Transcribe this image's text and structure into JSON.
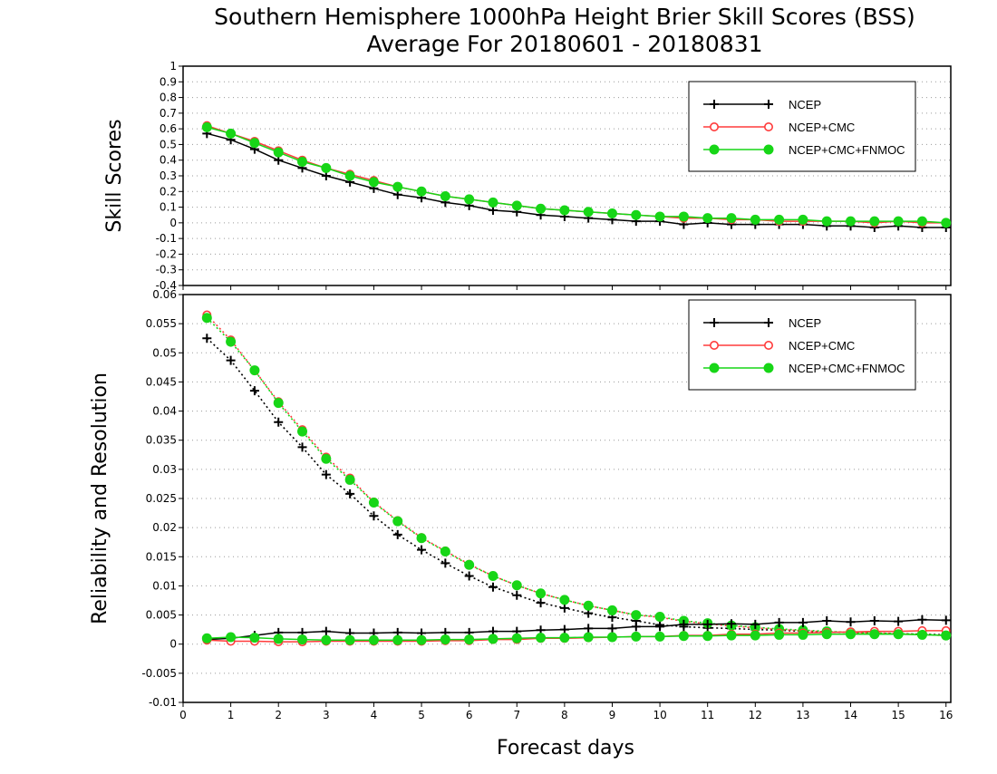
{
  "title_line1": "Southern Hemisphere 1000hPa Height Brier Skill Scores (BSS)",
  "title_line2": "Average For 20180601 - 20180831",
  "xlabel": "Forecast days",
  "colors": {
    "NCEP": "#000000",
    "NCEP+CMC": "#ff3b3b",
    "NCEP+CMC+FNMOC": "#17d617"
  },
  "chart_data": [
    {
      "type": "line",
      "panel": "top",
      "ylabel": "Skill Scores",
      "xlim": [
        0,
        16.1
      ],
      "ylim": [
        -0.4,
        1
      ],
      "x_ticks": [
        "0",
        "1",
        "2",
        "3",
        "4",
        "5",
        "6",
        "7",
        "8",
        "9",
        "10",
        "11",
        "12",
        "13",
        "14",
        "15",
        "16"
      ],
      "y_ticks": [
        "-0.4",
        "-0.3",
        "-0.2",
        "-0.1",
        "0",
        "0.1",
        "0.2",
        "0.3",
        "0.4",
        "0.5",
        "0.6",
        "0.7",
        "0.8",
        "0.9",
        "1"
      ],
      "grid": true,
      "legend": {
        "placement": "top-right",
        "entries": [
          "NCEP",
          "NCEP+CMC",
          "NCEP+CMC+FNMOC"
        ]
      },
      "x": [
        0.5,
        1,
        1.5,
        2,
        2.5,
        3,
        3.5,
        4,
        4.5,
        5,
        5.5,
        6,
        6.5,
        7,
        7.5,
        8,
        8.5,
        9,
        9.5,
        10,
        10.5,
        11,
        11.5,
        12,
        12.5,
        13,
        13.5,
        14,
        14.5,
        15,
        15.5,
        16
      ],
      "series": [
        {
          "name": "NCEP",
          "marker": "plus",
          "values": [
            0.57,
            0.53,
            0.47,
            0.4,
            0.35,
            0.3,
            0.26,
            0.22,
            0.18,
            0.16,
            0.13,
            0.11,
            0.08,
            0.07,
            0.05,
            0.04,
            0.03,
            0.02,
            0.01,
            0.01,
            -0.01,
            0.0,
            -0.01,
            -0.01,
            -0.01,
            -0.01,
            -0.02,
            -0.02,
            -0.03,
            -0.02,
            -0.03,
            -0.03
          ]
        },
        {
          "name": "NCEP+CMC",
          "marker": "open-circle",
          "values": [
            0.62,
            0.57,
            0.52,
            0.46,
            0.4,
            0.35,
            0.31,
            0.27,
            0.23,
            0.2,
            0.17,
            0.15,
            0.13,
            0.11,
            0.09,
            0.08,
            0.07,
            0.06,
            0.05,
            0.04,
            0.03,
            0.03,
            0.02,
            0.02,
            0.01,
            0.01,
            0.01,
            0.01,
            0.0,
            0.01,
            0.0,
            0.0
          ]
        },
        {
          "name": "NCEP+CMC+FNMOC",
          "marker": "filled-circle",
          "values": [
            0.61,
            0.57,
            0.51,
            0.45,
            0.39,
            0.35,
            0.3,
            0.26,
            0.23,
            0.2,
            0.17,
            0.15,
            0.13,
            0.11,
            0.09,
            0.08,
            0.07,
            0.06,
            0.05,
            0.04,
            0.04,
            0.03,
            0.03,
            0.02,
            0.02,
            0.02,
            0.01,
            0.01,
            0.01,
            0.01,
            0.01,
            0.0
          ]
        }
      ]
    },
    {
      "type": "line",
      "panel": "bottom",
      "ylabel": "Reliability and Resolution",
      "xlim": [
        0,
        16.1
      ],
      "ylim": [
        -0.01,
        0.06
      ],
      "x_ticks": [
        "0",
        "1",
        "2",
        "3",
        "4",
        "5",
        "6",
        "7",
        "8",
        "9",
        "10",
        "11",
        "12",
        "13",
        "14",
        "15",
        "16"
      ],
      "y_ticks": [
        "-0.01",
        "-0.005",
        "0",
        "0.005",
        "0.01",
        "0.015",
        "0.02",
        "0.025",
        "0.03",
        "0.035",
        "0.04",
        "0.045",
        "0.05",
        "0.055",
        "0.06"
      ],
      "grid": true,
      "legend": {
        "placement": "top-right",
        "entries": [
          "NCEP",
          "NCEP+CMC",
          "NCEP+CMC+FNMOC"
        ]
      },
      "x": [
        0.5,
        1,
        1.5,
        2,
        2.5,
        3,
        3.5,
        4,
        4.5,
        5,
        5.5,
        6,
        6.5,
        7,
        7.5,
        8,
        8.5,
        9,
        9.5,
        10,
        10.5,
        11,
        11.5,
        12,
        12.5,
        13,
        13.5,
        14,
        14.5,
        15,
        15.5,
        16
      ],
      "series": [
        {
          "name": "NCEP",
          "metric": "resolution",
          "style": "dotted",
          "marker": "plus",
          "values": [
            0.0525,
            0.0487,
            0.0435,
            0.0381,
            0.0338,
            0.0291,
            0.0258,
            0.022,
            0.0188,
            0.0162,
            0.0139,
            0.0117,
            0.0098,
            0.0084,
            0.0071,
            0.0062,
            0.0053,
            0.0046,
            0.004,
            0.0033,
            0.003,
            0.0028,
            0.0027,
            0.0025,
            0.0024,
            0.0022,
            0.0021,
            0.002,
            0.0019,
            0.0018,
            0.0017,
            0.0016
          ]
        },
        {
          "name": "NCEP+CMC",
          "metric": "resolution",
          "style": "dotted",
          "marker": "open-circle",
          "values": [
            0.0565,
            0.0522,
            0.047,
            0.0416,
            0.0368,
            0.0321,
            0.0285,
            0.0244,
            0.0212,
            0.0183,
            0.016,
            0.0137,
            0.0117,
            0.0101,
            0.0087,
            0.0076,
            0.0066,
            0.0058,
            0.005,
            0.0046,
            0.0039,
            0.0035,
            0.0031,
            0.0028,
            0.0025,
            0.0023,
            0.0021,
            0.002,
            0.0019,
            0.0018,
            0.0016,
            0.0015
          ]
        },
        {
          "name": "NCEP+CMC+FNMOC",
          "metric": "resolution",
          "style": "dotted",
          "marker": "filled-circle",
          "values": [
            0.056,
            0.0519,
            0.047,
            0.0414,
            0.0365,
            0.0318,
            0.0282,
            0.0243,
            0.0211,
            0.0182,
            0.0159,
            0.0136,
            0.0117,
            0.0101,
            0.0087,
            0.0076,
            0.0066,
            0.0058,
            0.005,
            0.0047,
            0.004,
            0.0036,
            0.0032,
            0.0029,
            0.0026,
            0.0024,
            0.0022,
            0.002,
            0.0019,
            0.0018,
            0.0017,
            0.0015
          ]
        },
        {
          "name": "NCEP",
          "metric": "reliability",
          "style": "solid",
          "marker": "plus",
          "values": [
            0.0008,
            0.001,
            0.0015,
            0.002,
            0.002,
            0.0022,
            0.0019,
            0.0019,
            0.002,
            0.0019,
            0.002,
            0.002,
            0.0022,
            0.0022,
            0.0024,
            0.0025,
            0.0027,
            0.0027,
            0.003,
            0.003,
            0.0034,
            0.0034,
            0.0035,
            0.0034,
            0.0037,
            0.0037,
            0.004,
            0.0038,
            0.004,
            0.0039,
            0.0042,
            0.0041
          ]
        },
        {
          "name": "NCEP+CMC",
          "metric": "reliability",
          "style": "solid",
          "marker": "open-circle",
          "values": [
            0.0007,
            0.0005,
            0.0005,
            0.0004,
            0.0004,
            0.0005,
            0.0005,
            0.0005,
            0.0005,
            0.0005,
            0.0006,
            0.0006,
            0.0008,
            0.0008,
            0.001,
            0.001,
            0.0011,
            0.0012,
            0.0013,
            0.0013,
            0.0015,
            0.0015,
            0.0017,
            0.0017,
            0.0019,
            0.0019,
            0.002,
            0.0021,
            0.0022,
            0.0022,
            0.0023,
            0.0023
          ]
        },
        {
          "name": "NCEP+CMC+FNMOC",
          "metric": "reliability",
          "style": "solid",
          "marker": "filled-circle",
          "values": [
            0.001,
            0.0012,
            0.0011,
            0.0009,
            0.0008,
            0.0007,
            0.0007,
            0.0007,
            0.0007,
            0.0007,
            0.0008,
            0.0008,
            0.0009,
            0.001,
            0.0011,
            0.0011,
            0.0012,
            0.0012,
            0.0013,
            0.0013,
            0.0014,
            0.0014,
            0.0015,
            0.0015,
            0.0016,
            0.0016,
            0.0017,
            0.0017,
            0.0017,
            0.0017,
            0.0016,
            0.0015
          ]
        }
      ]
    }
  ]
}
